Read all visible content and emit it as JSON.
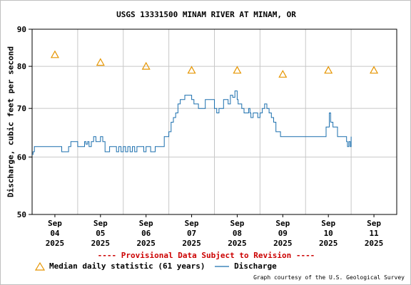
{
  "title": "USGS 13331500 MINAM RIVER AT MINAM, OR",
  "provisional_notice": "---- Provisional Data Subject to Revision ----",
  "credit": "Graph courtesy of the U.S. Geological Survey",
  "colors": {
    "discharge": "#1b6fae",
    "median": "#e69500",
    "grid": "#c8c8c8",
    "provisional": "#cc0000"
  },
  "chart_data": {
    "type": "line",
    "title": "USGS 13331500 MINAM RIVER AT MINAM, OR",
    "ylabel": "Discharge, cubic feet per second",
    "yscale": "log",
    "ylim": [
      50,
      90
    ],
    "yticks": [
      50,
      60,
      70,
      80,
      90
    ],
    "xlim": [
      3.5,
      11.5
    ],
    "xticks": [
      {
        "x": 4,
        "label": [
          "Sep",
          "04",
          "2025"
        ]
      },
      {
        "x": 5,
        "label": [
          "Sep",
          "05",
          "2025"
        ]
      },
      {
        "x": 6,
        "label": [
          "Sep",
          "06",
          "2025"
        ]
      },
      {
        "x": 7,
        "label": [
          "Sep",
          "07",
          "2025"
        ]
      },
      {
        "x": 8,
        "label": [
          "Sep",
          "08",
          "2025"
        ]
      },
      {
        "x": 9,
        "label": [
          "Sep",
          "09",
          "2025"
        ]
      },
      {
        "x": 10,
        "label": [
          "Sep",
          "10",
          "2025"
        ]
      },
      {
        "x": 11,
        "label": [
          "Sep",
          "11",
          "2025"
        ]
      }
    ],
    "grid": true,
    "legend_position": "bottom",
    "series": [
      {
        "name": "Median daily statistic (61 years)",
        "kind": "markers",
        "marker": "triangle",
        "x": [
          4,
          5,
          6,
          7,
          8,
          9,
          10,
          11
        ],
        "y": [
          83,
          81,
          80,
          79,
          79,
          78,
          79,
          79
        ]
      },
      {
        "name": "Discharge",
        "kind": "line",
        "x": [
          3.5,
          3.52,
          3.55,
          3.9,
          4.15,
          4.3,
          4.35,
          4.5,
          4.65,
          4.68,
          4.72,
          4.75,
          4.8,
          4.85,
          4.9,
          5.0,
          5.05,
          5.1,
          5.2,
          5.3,
          5.35,
          5.4,
          5.45,
          5.5,
          5.55,
          5.6,
          5.65,
          5.7,
          5.75,
          5.8,
          5.85,
          5.9,
          5.95,
          6.0,
          6.05,
          6.1,
          6.15,
          6.2,
          6.25,
          6.3,
          6.35,
          6.4,
          6.45,
          6.5,
          6.55,
          6.6,
          6.65,
          6.7,
          6.75,
          6.8,
          6.85,
          6.9,
          6.95,
          7.0,
          7.05,
          7.1,
          7.15,
          7.2,
          7.3,
          7.4,
          7.5,
          7.55,
          7.6,
          7.7,
          7.8,
          7.85,
          7.9,
          7.95,
          8.0,
          8.02,
          8.1,
          8.15,
          8.2,
          8.25,
          8.28,
          8.3,
          8.35,
          8.4,
          8.45,
          8.5,
          8.55,
          8.6,
          8.65,
          8.7,
          8.75,
          8.8,
          8.85,
          8.9,
          8.95,
          9.0,
          9.05,
          9.1,
          9.15,
          9.2,
          9.3,
          9.5,
          9.7,
          9.9,
          9.95,
          10.0,
          10.02,
          10.05,
          10.07,
          10.1,
          10.15,
          10.2,
          10.25,
          10.3,
          10.35,
          10.4,
          10.42,
          10.45,
          10.48,
          10.5
        ],
        "y": [
          60.5,
          61,
          62,
          62,
          61,
          62,
          63,
          62,
          63,
          62.5,
          63,
          62,
          63,
          64,
          63,
          64,
          63,
          61,
          62,
          62,
          61,
          62,
          61,
          62,
          61,
          62,
          61,
          62,
          61,
          62,
          62,
          62,
          61,
          62,
          62,
          61,
          61,
          62,
          62,
          62,
          62,
          64,
          64,
          65,
          67,
          68,
          69,
          71,
          72,
          72,
          73,
          73,
          73,
          72,
          71,
          71,
          70,
          70,
          72,
          72,
          70,
          69,
          70,
          72,
          71,
          73,
          72.5,
          74,
          72,
          71,
          70,
          69,
          69,
          70,
          69,
          68,
          69,
          69,
          68,
          69,
          70,
          71,
          70,
          69,
          68,
          67,
          65,
          65,
          64,
          64,
          64,
          64,
          64,
          64,
          64,
          64,
          64,
          64,
          66,
          66,
          69,
          67,
          67,
          66,
          66,
          64,
          64,
          64,
          64,
          63,
          62,
          63,
          62,
          64
        ]
      }
    ]
  }
}
